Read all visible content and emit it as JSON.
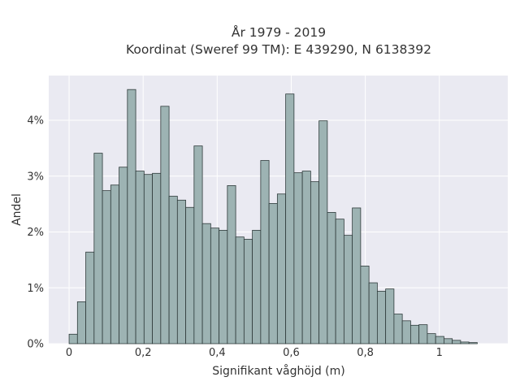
{
  "chart_data": {
    "type": "bar",
    "title": "År 1979 - 2019",
    "subtitle": "Koordinat (Sweref 99 TM): E 439290, N 6138392",
    "xlabel": "Signifikant våghöjd (m)",
    "ylabel": "Andel",
    "x_tick_values": [
      0,
      0.2,
      0.4,
      0.6,
      0.8,
      1
    ],
    "x_tick_labels": [
      "0",
      "0,2",
      "0,4",
      "0,6",
      "0,8",
      "1"
    ],
    "y_tick_values": [
      0,
      1,
      2,
      3,
      4
    ],
    "y_tick_labels": [
      "0%",
      "1%",
      "2%",
      "3%",
      "4%"
    ],
    "xlim": [
      -0.055,
      1.185
    ],
    "ylim": [
      0,
      4.8
    ],
    "bin_width": 0.0225,
    "bin_start": 0,
    "values": [
      0.17,
      0.75,
      1.64,
      3.41,
      2.74,
      2.84,
      3.16,
      4.55,
      3.09,
      3.03,
      3.05,
      4.25,
      2.64,
      2.57,
      2.44,
      3.54,
      2.15,
      2.07,
      2.03,
      2.83,
      1.91,
      1.87,
      2.03,
      3.28,
      2.51,
      2.68,
      4.47,
      3.06,
      3.09,
      2.9,
      3.99,
      2.35,
      2.23,
      1.94,
      2.43,
      1.39,
      1.09,
      0.94,
      0.98,
      0.53,
      0.41,
      0.33,
      0.34,
      0.18,
      0.13,
      0.09,
      0.06,
      0.03,
      0.02
    ],
    "grid": true,
    "colors": {
      "plot_background": "#eaeaf2",
      "grid": "#ffffff",
      "bar_fill": "#9db3b3",
      "bar_edge": "#2f3b3b",
      "text": "#333333"
    }
  }
}
